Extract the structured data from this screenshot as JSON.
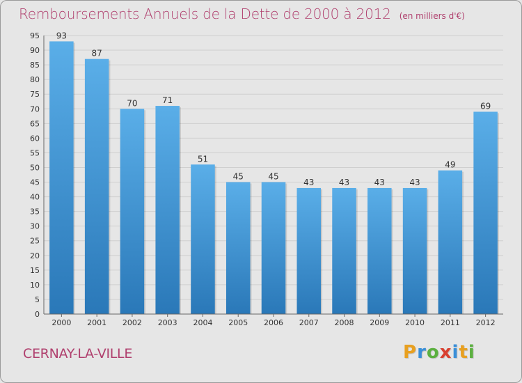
{
  "header": {
    "title": "Remboursements Annuels de la Dette de 2000 à 2012",
    "unit": "(en milliers d'€)"
  },
  "footer": {
    "commune": "CERNAY-LA-VILLE",
    "logo_letters": [
      {
        "ch": "P",
        "color": "#e8a020"
      },
      {
        "ch": "r",
        "color": "#3a8fd8"
      },
      {
        "ch": "o",
        "color": "#5cb040"
      },
      {
        "ch": "x",
        "color": "#d84030"
      },
      {
        "ch": "i",
        "color": "#3a8fd8"
      },
      {
        "ch": "t",
        "color": "#e8a020"
      },
      {
        "ch": "i",
        "color": "#5cb040"
      }
    ]
  },
  "chart_data": {
    "type": "bar",
    "categories": [
      "2000",
      "2001",
      "2002",
      "2003",
      "2004",
      "2005",
      "2006",
      "2007",
      "2008",
      "2009",
      "2010",
      "2011",
      "2012"
    ],
    "values": [
      93,
      87,
      70,
      71,
      51,
      45,
      45,
      43,
      43,
      43,
      43,
      49,
      69
    ],
    "data_labels": [
      "93",
      "87",
      "70",
      "71",
      "51",
      "45",
      "45",
      "43",
      "43",
      "43",
      "43",
      "49",
      "69"
    ],
    "yticks": [
      "0",
      "5",
      "10",
      "15",
      "20",
      "25",
      "30",
      "35",
      "40",
      "45",
      "50",
      "55",
      "60",
      "65",
      "70",
      "75",
      "80",
      "85",
      "90",
      "95"
    ],
    "ylim": [
      0,
      95
    ],
    "ytick_step": 5,
    "grid": true,
    "bar_color_top": "#5aaee8",
    "bar_color_bottom": "#2a78b8"
  }
}
